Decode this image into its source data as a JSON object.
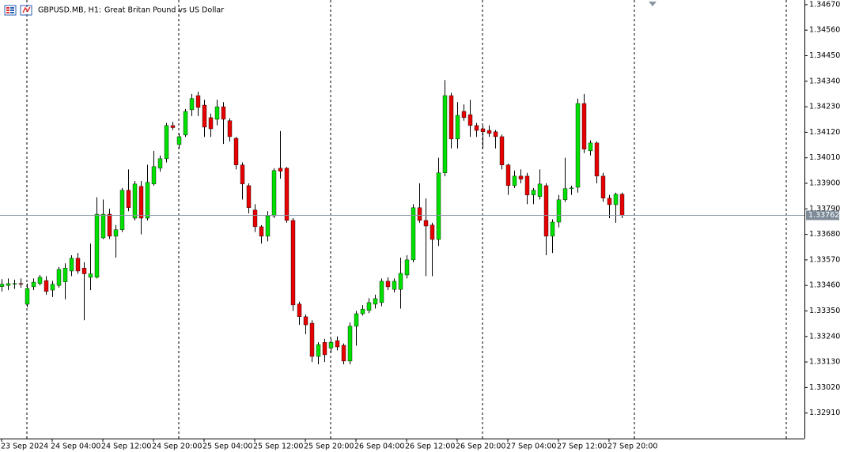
{
  "chart_data": {
    "type": "candlestick",
    "title": "GBPUSD.MB, H1:",
    "subtitle": "Great Britan Pound vs US Dollar",
    "categories": [
      "23 Sep 2024",
      null,
      null,
      null,
      null,
      null,
      null,
      null,
      "24 Sep 04:00",
      null,
      null,
      null,
      null,
      null,
      null,
      null,
      "24 Sep 12:00",
      null,
      null,
      null,
      null,
      null,
      null,
      null,
      "24 Sep 20:00",
      null,
      null,
      null,
      null,
      null,
      null,
      null,
      "25 Sep 04:00",
      null,
      null,
      null,
      null,
      null,
      null,
      null,
      "25 Sep 12:00",
      null,
      null,
      null,
      null,
      null,
      null,
      null,
      "25 Sep 20:00",
      null,
      null,
      null,
      null,
      null,
      null,
      null,
      "26 Sep 04:00",
      null,
      null,
      null,
      null,
      null,
      null,
      null,
      "26 Sep 12:00",
      null,
      null,
      null,
      null,
      null,
      null,
      null,
      "26 Sep 20:00",
      null,
      null,
      null,
      null,
      null,
      null,
      null,
      "27 Sep 04:00",
      null,
      null,
      null,
      null,
      null,
      null,
      null,
      "27 Sep 12:00",
      null,
      null,
      null,
      null,
      null,
      null,
      null,
      "27 Sep 20:00",
      null,
      null
    ],
    "open": [
      1.33455,
      1.3346,
      1.33465,
      1.33468,
      1.33379,
      1.33454,
      1.33468,
      1.33481,
      1.3344,
      1.3346,
      1.33475,
      1.33522,
      1.33577,
      1.33535,
      1.33495,
      1.33495,
      1.33665,
      1.33767,
      1.33672,
      1.337,
      1.3387,
      1.3375,
      1.33887,
      1.3375,
      1.33897,
      1.33965,
      1.34006,
      1.34149,
      1.34067,
      1.34108,
      1.34217,
      1.34278,
      1.34237,
      1.34183,
      1.34176,
      1.3423,
      1.3417,
      1.34094,
      1.33979,
      1.3389,
      1.33785,
      1.33713,
      1.33672,
      1.3376,
      1.33965,
      1.33965,
      1.3374,
      1.3338,
      1.33325,
      1.33297,
      1.33154,
      1.33215,
      1.3319,
      1.33222,
      1.33202,
      1.33134,
      1.33284,
      1.33338,
      1.33352,
      1.33379,
      1.33386,
      1.33478,
      1.33443,
      1.33443,
      1.33505,
      1.3357,
      1.33795,
      1.3374,
      1.3372,
      1.33658,
      1.33945,
      1.34278,
      1.34091,
      1.3421,
      1.34196,
      1.34149,
      1.34135,
      1.34128,
      1.34122,
      1.34101,
      1.33979,
      1.3389,
      1.33931,
      1.33931,
      1.3385,
      1.33843,
      1.3389,
      1.33672,
      1.33733,
      1.33829,
      1.33877,
      1.33883,
      1.34244,
      1.3404,
      1.34074,
      1.33931,
      1.33836,
      1.33808,
      1.33853
    ],
    "high": [
      1.33487,
      1.3349,
      1.33485,
      1.3349,
      1.33468,
      1.3349,
      1.33505,
      1.335,
      1.3348,
      1.3354,
      1.33555,
      1.3359,
      1.336,
      1.3356,
      1.3364,
      1.3384,
      1.3383,
      1.3379,
      1.3372,
      1.3388,
      1.3396,
      1.3391,
      1.3391,
      1.3398,
      1.3404,
      1.3402,
      1.3416,
      1.34165,
      1.34115,
      1.3422,
      1.34285,
      1.34295,
      1.3426,
      1.342,
      1.3426,
      1.3425,
      1.3418,
      1.341,
      1.3399,
      1.339,
      1.3381,
      1.3372,
      1.3378,
      1.33965,
      1.34125,
      1.3397,
      1.3375,
      1.3339,
      1.33335,
      1.3331,
      1.33215,
      1.3323,
      1.3323,
      1.3324,
      1.3321,
      1.333,
      1.3335,
      1.33375,
      1.33405,
      1.3342,
      1.3349,
      1.33495,
      1.3349,
      1.3358,
      1.3359,
      1.3381,
      1.339,
      1.33835,
      1.3373,
      1.3401,
      1.34345,
      1.3429,
      1.3425,
      1.3424,
      1.3426,
      1.3416,
      1.3415,
      1.3415,
      1.3413,
      1.3411,
      1.33985,
      1.33955,
      1.3396,
      1.33945,
      1.3388,
      1.3396,
      1.339,
      1.33745,
      1.3385,
      1.3401,
      1.3389,
      1.34265,
      1.34285,
      1.34085,
      1.3408,
      1.33945,
      1.3385,
      1.3386,
      1.3386
    ],
    "low": [
      1.33434,
      1.3344,
      1.33445,
      1.3345,
      1.33366,
      1.3344,
      1.3346,
      1.3342,
      1.3341,
      1.3345,
      1.334,
      1.335,
      1.3351,
      1.3331,
      1.3344,
      1.3349,
      1.3366,
      1.3366,
      1.3358,
      1.3369,
      1.3378,
      1.3374,
      1.3368,
      1.3374,
      1.3389,
      1.3395,
      1.3399,
      1.3413,
      1.3405,
      1.341,
      1.3419,
      1.3419,
      1.341,
      1.341,
      1.3415,
      1.3407,
      1.3408,
      1.3396,
      1.3383,
      1.3377,
      1.3369,
      1.3364,
      1.3365,
      1.3375,
      1.3392,
      1.3373,
      1.3335,
      1.3329,
      1.3325,
      1.3313,
      1.3312,
      1.3313,
      1.3317,
      1.3318,
      1.3312,
      1.3312,
      1.332,
      1.3333,
      1.3334,
      1.3336,
      1.3337,
      1.3344,
      1.3343,
      1.3336,
      1.3349,
      1.3356,
      1.3373,
      1.335,
      1.335,
      1.3363,
      1.3393,
      1.3405,
      1.3405,
      1.3417,
      1.341,
      1.341,
      1.3405,
      1.341,
      1.3405,
      1.3396,
      1.3385,
      1.3388,
      1.339,
      1.3381,
      1.3381,
      1.3383,
      1.3359,
      1.336,
      1.3371,
      1.3382,
      1.3385,
      1.3386,
      1.3403,
      1.3402,
      1.339,
      1.3382,
      1.3375,
      1.3373,
      1.3375
    ],
    "close": [
      1.33465,
      1.33468,
      1.33468,
      1.33465,
      1.33447,
      1.33474,
      1.33495,
      1.33434,
      1.33465,
      1.33529,
      1.33535,
      1.33577,
      1.33522,
      1.3351,
      1.3351,
      1.33767,
      1.33767,
      1.33672,
      1.337,
      1.3387,
      1.33795,
      1.33897,
      1.3375,
      1.33904,
      1.33972,
      1.34006,
      1.34149,
      1.3414,
      1.34101,
      1.3421,
      1.34265,
      1.34227,
      1.34142,
      1.34135,
      1.3423,
      1.34176,
      1.34101,
      1.33979,
      1.33897,
      1.33795,
      1.33713,
      1.33672,
      1.3376,
      1.33955,
      1.33952,
      1.3374,
      1.33376,
      1.33325,
      1.3329,
      1.33154,
      1.33205,
      1.33161,
      1.33215,
      1.33195,
      1.33134,
      1.33284,
      1.33338,
      1.33358,
      1.33386,
      1.33403,
      1.33478,
      1.33454,
      1.33478,
      1.33512,
      1.3357,
      1.33795,
      1.3374,
      1.33716,
      1.33658,
      1.33945,
      1.34278,
      1.34091,
      1.34193,
      1.34183,
      1.34149,
      1.34128,
      1.34122,
      1.34115,
      1.34101,
      1.33979,
      1.3389,
      1.33931,
      1.33918,
      1.3385,
      1.3387,
      1.33897,
      1.33672,
      1.33733,
      1.33829,
      1.33877,
      1.3388,
      1.34244,
      1.34047,
      1.34074,
      1.33931,
      1.33836,
      1.33808,
      1.33853,
      1.33762
    ],
    "up_color": "#00e000",
    "down_color": "#e60000",
    "wick_color": "#000000",
    "current_price": 1.33762,
    "ylim": [
      1.328,
      1.3469
    ],
    "yticks": [
      {
        "value": 1.3467,
        "label": "1.34670"
      },
      {
        "value": 1.3456,
        "label": "1.34560"
      },
      {
        "value": 1.3445,
        "label": "1.34450"
      },
      {
        "value": 1.3434,
        "label": "1.34340"
      },
      {
        "value": 1.3423,
        "label": "1.34230"
      },
      {
        "value": 1.3412,
        "label": "1.34120"
      },
      {
        "value": 1.3401,
        "label": "1.34010"
      },
      {
        "value": 1.339,
        "label": "1.33900"
      },
      {
        "value": 1.3379,
        "label": "1.33790"
      },
      {
        "value": 1.3368,
        "label": "1.33680"
      },
      {
        "value": 1.3357,
        "label": "1.33570"
      },
      {
        "value": 1.3346,
        "label": "1.33460"
      },
      {
        "value": 1.3335,
        "label": "1.33350"
      },
      {
        "value": 1.3324,
        "label": "1.33240"
      },
      {
        "value": 1.3313,
        "label": "1.33130"
      },
      {
        "value": 1.3302,
        "label": "1.33020"
      },
      {
        "value": 1.3291,
        "label": "1.32910"
      }
    ],
    "period_separators": true
  }
}
